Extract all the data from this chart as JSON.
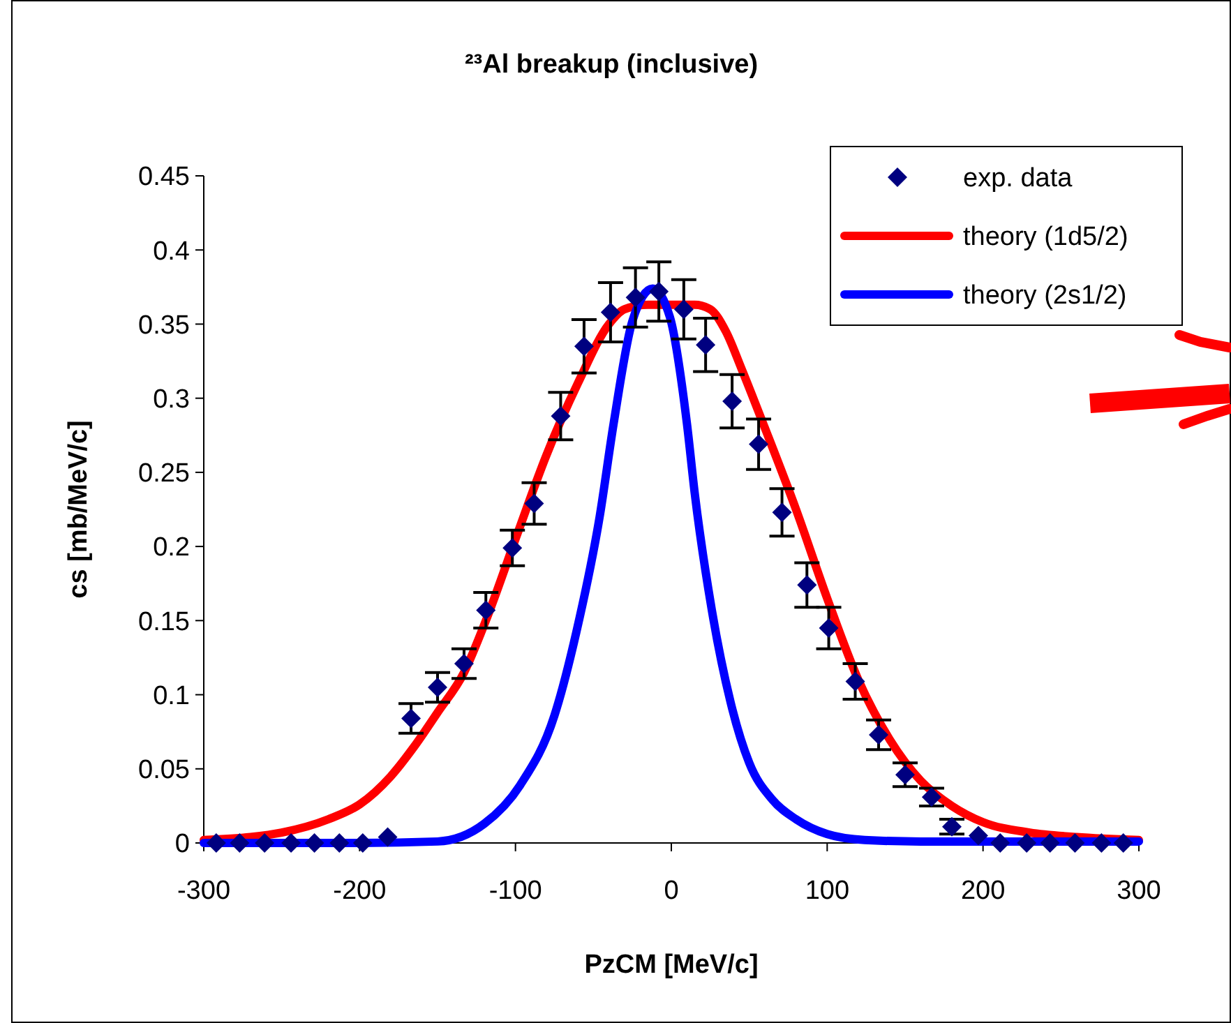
{
  "chart_data": {
    "type": "scatter",
    "title": "²³Al breakup (inclusive)",
    "xlabel": "PzCM [MeV/c]",
    "ylabel": "cs [mb/MeV/c]",
    "xlim": [
      -300,
      300
    ],
    "xticks": [
      -300,
      -200,
      -100,
      0,
      100,
      200,
      300
    ],
    "ylim": [
      0,
      0.45
    ],
    "yticks": [
      0,
      0.05,
      0.1,
      0.15,
      0.2,
      0.25,
      0.3,
      0.35,
      0.4,
      0.45
    ],
    "grid": false,
    "legend": "top right",
    "series": [
      {
        "name": "exp. data",
        "marker": "diamond",
        "color": "#000080",
        "x": [
          -292,
          -277,
          -261,
          -244,
          -229,
          -213,
          -198,
          -182,
          -167,
          -150,
          -133,
          -119,
          -102,
          -88,
          -71,
          -56,
          -39,
          -23,
          -8,
          8,
          22,
          39,
          56,
          71,
          87,
          101,
          118,
          133,
          150,
          167,
          180,
          197,
          211,
          228,
          243,
          259,
          276,
          290
        ],
        "values": [
          0,
          0,
          0,
          0,
          0,
          0,
          0,
          0.004,
          0.084,
          0.105,
          0.121,
          0.157,
          0.199,
          0.229,
          0.288,
          0.335,
          0.358,
          0.368,
          0.372,
          0.36,
          0.336,
          0.298,
          0.269,
          0.223,
          0.174,
          0.145,
          0.109,
          0.073,
          0.046,
          0.031,
          0.011,
          0.005,
          0,
          0,
          0,
          0,
          0,
          0
        ],
        "errors": [
          null,
          null,
          null,
          null,
          null,
          null,
          null,
          null,
          0.01,
          0.01,
          0.01,
          0.012,
          0.012,
          0.014,
          0.016,
          0.018,
          0.02,
          0.02,
          0.02,
          0.02,
          0.018,
          0.018,
          0.017,
          0.016,
          0.015,
          0.014,
          0.012,
          0.01,
          0.008,
          0.006,
          0.005,
          null,
          null,
          null,
          null,
          null,
          null,
          null
        ]
      },
      {
        "name": "theory (1d5/2)",
        "type": "line",
        "color": "#ff0000",
        "marker": "none",
        "line_style": "solid",
        "x": [
          -300,
          -270,
          -250,
          -220,
          -200,
          -180,
          -165,
          -150,
          -133,
          -119,
          -100,
          -80,
          -60,
          -40,
          -30,
          -15,
          0,
          15,
          25,
          35,
          45,
          60,
          80,
          100,
          120,
          140,
          160,
          180,
          200,
          230,
          260,
          300
        ],
        "values": [
          0.002,
          0.004,
          0.007,
          0.016,
          0.026,
          0.045,
          0.065,
          0.088,
          0.115,
          0.15,
          0.205,
          0.262,
          0.31,
          0.35,
          0.36,
          0.363,
          0.363,
          0.363,
          0.36,
          0.345,
          0.32,
          0.28,
          0.225,
          0.165,
          0.11,
          0.07,
          0.042,
          0.025,
          0.014,
          0.007,
          0.004,
          0.002
        ]
      },
      {
        "name": "theory (2s1/2)",
        "type": "line",
        "color": "#0000ff",
        "marker": "none",
        "line_style": "solid",
        "x": [
          -300,
          -200,
          -150,
          -120,
          -97,
          -75,
          -61,
          -46,
          -37,
          -25,
          -12,
          -1,
          10,
          15,
          26,
          38,
          50,
          65,
          80,
          100,
          124,
          160,
          200,
          300
        ],
        "values": [
          0,
          0,
          0.001,
          0.013,
          0.039,
          0.086,
          0.142,
          0.22,
          0.283,
          0.352,
          0.374,
          0.355,
          0.283,
          0.236,
          0.157,
          0.095,
          0.054,
          0.029,
          0.016,
          0.006,
          0.002,
          0.001,
          0.001,
          0.001
        ]
      }
    ]
  }
}
